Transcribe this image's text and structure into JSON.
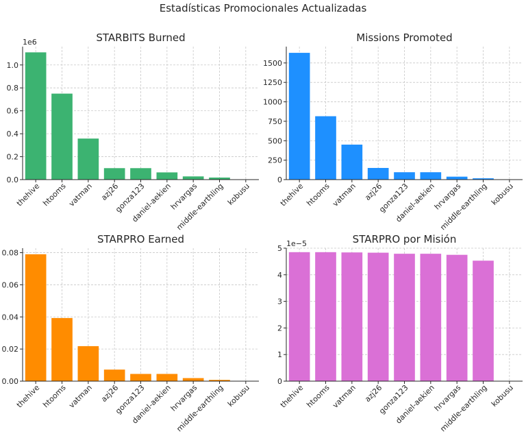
{
  "suptitle": "Estadísticas Promocionales Actualizadas",
  "chart_data": [
    {
      "type": "bar",
      "title": "STARBITS Burned",
      "color": "#3cb371",
      "categories": [
        "thehive",
        "htooms",
        "vatman",
        "azj26",
        "gonza123",
        "daniel-aekien",
        "hrvargas",
        "middle-earthling",
        "kobusu"
      ],
      "values": [
        1110000,
        750000,
        358000,
        100000,
        100000,
        63000,
        28000,
        18000,
        0
      ],
      "ylim": [
        0,
        1160000
      ],
      "yticks": [
        0,
        200000,
        400000,
        600000,
        800000,
        1000000
      ],
      "ytick_labels": [
        "0.0",
        "0.2",
        "0.4",
        "0.6",
        "0.8",
        "1.0"
      ],
      "offset_label": "1e6",
      "grid": true
    },
    {
      "type": "bar",
      "title": "Missions Promoted",
      "color": "#1e90ff",
      "categories": [
        "thehive",
        "htooms",
        "vatman",
        "azj26",
        "gonza123",
        "daniel-aekien",
        "hrvargas",
        "middle-earthling",
        "kobusu"
      ],
      "values": [
        1630,
        815,
        450,
        150,
        95,
        95,
        38,
        17,
        0
      ],
      "ylim": [
        0,
        1710
      ],
      "yticks": [
        0,
        250,
        500,
        750,
        1000,
        1250,
        1500
      ],
      "ytick_labels": [
        "0",
        "250",
        "500",
        "750",
        "1000",
        "1250",
        "1500"
      ],
      "offset_label": "",
      "grid": true
    },
    {
      "type": "bar",
      "title": "STARPRO Earned",
      "color": "#ff8c00",
      "categories": [
        "thehive",
        "htooms",
        "vatman",
        "azj26",
        "gonza123",
        "daniel-aekien",
        "hrvargas",
        "middle-earthling",
        "kobusu"
      ],
      "values": [
        0.079,
        0.0393,
        0.0218,
        0.0072,
        0.0045,
        0.0045,
        0.0019,
        0.0008,
        0
      ],
      "ylim": [
        0,
        0.0828
      ],
      "yticks": [
        0,
        0.02,
        0.04,
        0.06,
        0.08
      ],
      "ytick_labels": [
        "0.00",
        "0.02",
        "0.04",
        "0.06",
        "0.08"
      ],
      "offset_label": "",
      "grid": true
    },
    {
      "type": "bar",
      "title": "STARPRO por Misión",
      "color": "#da70d6",
      "categories": [
        "thehive",
        "htooms",
        "vatman",
        "azj26",
        "gonza123",
        "daniel-aekien",
        "hrvargas",
        "middle-earthling",
        "kobusu"
      ],
      "values": [
        4.85e-05,
        4.85e-05,
        4.84e-05,
        4.83e-05,
        4.79e-05,
        4.79e-05,
        4.75e-05,
        4.53e-05,
        0
      ],
      "ylim": [
        0,
        5e-05
      ],
      "yticks": [
        0,
        1e-05,
        2e-05,
        3e-05,
        4e-05,
        5e-05
      ],
      "ytick_labels": [
        "0",
        "1",
        "2",
        "3",
        "4",
        "5"
      ],
      "offset_label": "1e−5",
      "grid": true
    }
  ]
}
